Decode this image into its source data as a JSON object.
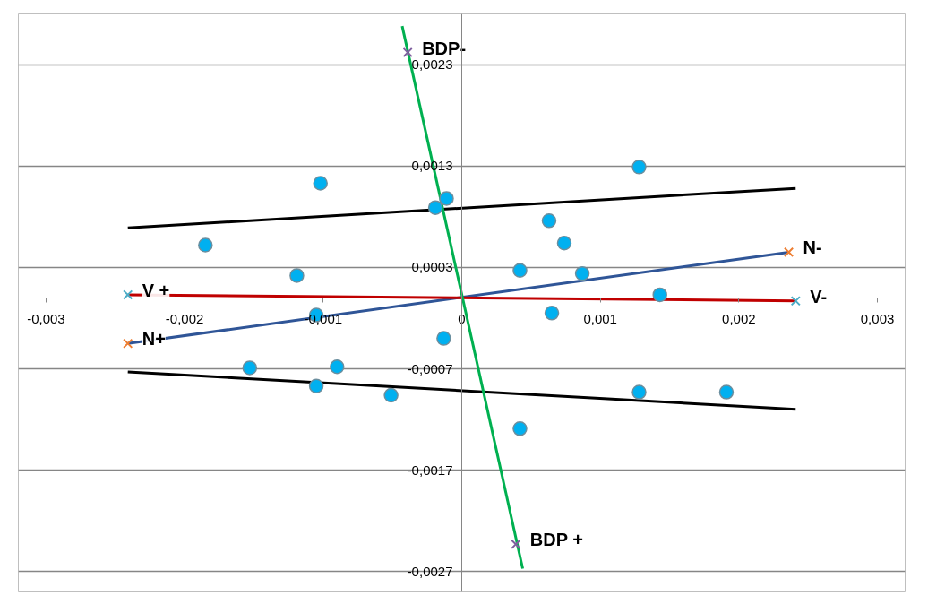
{
  "chart_data": {
    "type": "scatter",
    "xlim": [
      -0.0032,
      0.0032
    ],
    "ylim": [
      -0.0029,
      0.0028
    ],
    "xticks": [
      {
        "value": -0.003,
        "label": "-0,003"
      },
      {
        "value": -0.002,
        "label": "-0,002"
      },
      {
        "value": -0.001,
        "label": "-0,001"
      },
      0,
      {
        "value": 0.001,
        "label": "0,001"
      },
      {
        "value": 0.002,
        "label": "0,002"
      },
      {
        "value": 0.003,
        "label": "0,003"
      }
    ],
    "yticks": [
      {
        "value": -0.0027,
        "label": "-0,0027"
      },
      {
        "value": -0.0017,
        "label": "-0,0017"
      },
      {
        "value": -0.0007,
        "label": "-0,0007"
      },
      {
        "value": 0.0003,
        "label": "0,0003"
      },
      {
        "value": 0.0013,
        "label": "0,0013"
      },
      {
        "value": 0.0023,
        "label": "0,0023"
      }
    ],
    "grid": "y",
    "series": [
      {
        "type": "scatter",
        "marker": "circle",
        "color": "#00b0f0",
        "x": [
          -0.00185,
          -0.00102,
          -0.00019,
          -0.00011,
          0.00063,
          0.00074,
          0.00128
        ],
        "values": [
          0.00052,
          0.00113,
          0.00089,
          0.00098,
          0.00076,
          0.00054,
          0.00129
        ]
      },
      {
        "type": "scatter",
        "marker": "circle",
        "color": "#00b0f0",
        "x": [
          -0.00119,
          -0.00105,
          -0.00013,
          0.00042,
          0.00065,
          0.00087,
          0.00143
        ],
        "values": [
          0.00022,
          -0.00017,
          -0.0004,
          0.00027,
          -0.00015,
          0.00024,
          3e-05
        ]
      },
      {
        "type": "scatter",
        "marker": "circle",
        "color": "#00b0f0",
        "x": [
          -0.00153,
          -0.00105,
          -0.0009,
          -0.00051,
          0.00042,
          0.00128,
          0.00191
        ],
        "values": [
          -0.00069,
          -0.00087,
          -0.00068,
          -0.00096,
          -0.00129,
          -0.00093,
          -0.00093
        ]
      },
      {
        "type": "line",
        "color": "#000000",
        "x": [
          -0.00241,
          0.00241
        ],
        "values": [
          0.00069,
          0.00108
        ]
      },
      {
        "type": "line",
        "color": "#000000",
        "x": [
          -0.00241,
          0.00241
        ],
        "values": [
          -0.00073,
          -0.0011
        ]
      },
      {
        "type": "line",
        "color": "#2f5597",
        "x": [
          -0.00241,
          0.00236
        ],
        "values": [
          -0.00045,
          0.00045
        ]
      },
      {
        "type": "line",
        "color": "#c00000",
        "x": [
          -0.00241,
          0.00241
        ],
        "values": [
          3e-05,
          -3e-05
        ]
      },
      {
        "type": "line",
        "color": "#00b050",
        "x": [
          -0.00043,
          0.00044
        ],
        "values": [
          0.00268,
          -0.00267
        ]
      },
      {
        "type": "scatter",
        "marker": "cross",
        "color": "#ed7d31",
        "x": [
          -0.00241,
          0.00236
        ],
        "values": [
          -0.00045,
          0.00045
        ]
      },
      {
        "type": "scatter",
        "marker": "cross",
        "color": "#4bacc6",
        "x": [
          -0.00241,
          0.00241
        ],
        "values": [
          3e-05,
          -3e-05
        ]
      },
      {
        "type": "scatter",
        "marker": "cross",
        "color": "#7f5f9f",
        "x": [
          -0.00039,
          0.00039
        ],
        "values": [
          0.00242,
          -0.00243
        ]
      }
    ],
    "annotations": [
      {
        "text": "BDP-",
        "x": -0.00039,
        "y": 0.00242
      },
      {
        "text": "BDP +",
        "x": 0.00039,
        "y": -0.00243
      },
      {
        "text": "N-",
        "x": 0.00236,
        "y": 0.00045
      },
      {
        "text": "N+",
        "x": -0.00241,
        "y": -0.00045
      },
      {
        "text": "V +",
        "x": -0.00241,
        "y": 3e-05
      },
      {
        "text": "V-",
        "x": 0.00241,
        "y": -3e-05
      }
    ]
  }
}
